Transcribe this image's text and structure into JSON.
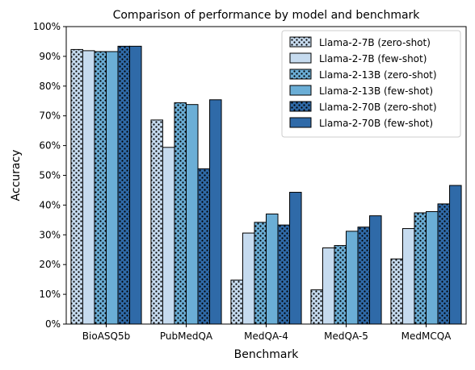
{
  "chart_data": {
    "type": "bar",
    "title": "Comparison of performance by model and benchmark",
    "xlabel": "Benchmark",
    "ylabel": "Accuracy",
    "ylim": [
      0,
      100
    ],
    "y_ticks": [
      "0%",
      "10%",
      "20%",
      "30%",
      "40%",
      "50%",
      "60%",
      "70%",
      "80%",
      "90%",
      "100%"
    ],
    "grid": false,
    "legend_position": "top-right",
    "categories": [
      "BioASQ5b",
      "PubMedQA",
      "MedQA-4",
      "MedQA-5",
      "MedMCQA"
    ],
    "series": [
      {
        "name": "Llama-2-7B (zero-shot)",
        "color": "#c6dbef",
        "hatch": "dots",
        "values": [
          92.3,
          68.6,
          14.8,
          11.5,
          21.9
        ]
      },
      {
        "name": "Llama-2-7B (few-shot)",
        "color": "#c6dbef",
        "hatch": "none",
        "values": [
          91.9,
          59.4,
          30.6,
          25.6,
          32.1
        ]
      },
      {
        "name": "Llama-2-13B (zero-shot)",
        "color": "#6baed6",
        "hatch": "dots",
        "values": [
          91.6,
          74.4,
          34.2,
          26.4,
          37.4
        ]
      },
      {
        "name": "Llama-2-13B (few-shot)",
        "color": "#6baed6",
        "hatch": "none",
        "values": [
          91.6,
          73.8,
          37.0,
          31.2,
          37.8
        ]
      },
      {
        "name": "Llama-2-70B (zero-shot)",
        "color": "#2f6aa8",
        "hatch": "dots",
        "values": [
          93.4,
          52.2,
          33.3,
          32.6,
          40.4
        ]
      },
      {
        "name": "Llama-2-70B (few-shot)",
        "color": "#2f6aa8",
        "hatch": "none",
        "values": [
          93.4,
          75.4,
          44.3,
          36.4,
          46.6
        ]
      }
    ]
  }
}
